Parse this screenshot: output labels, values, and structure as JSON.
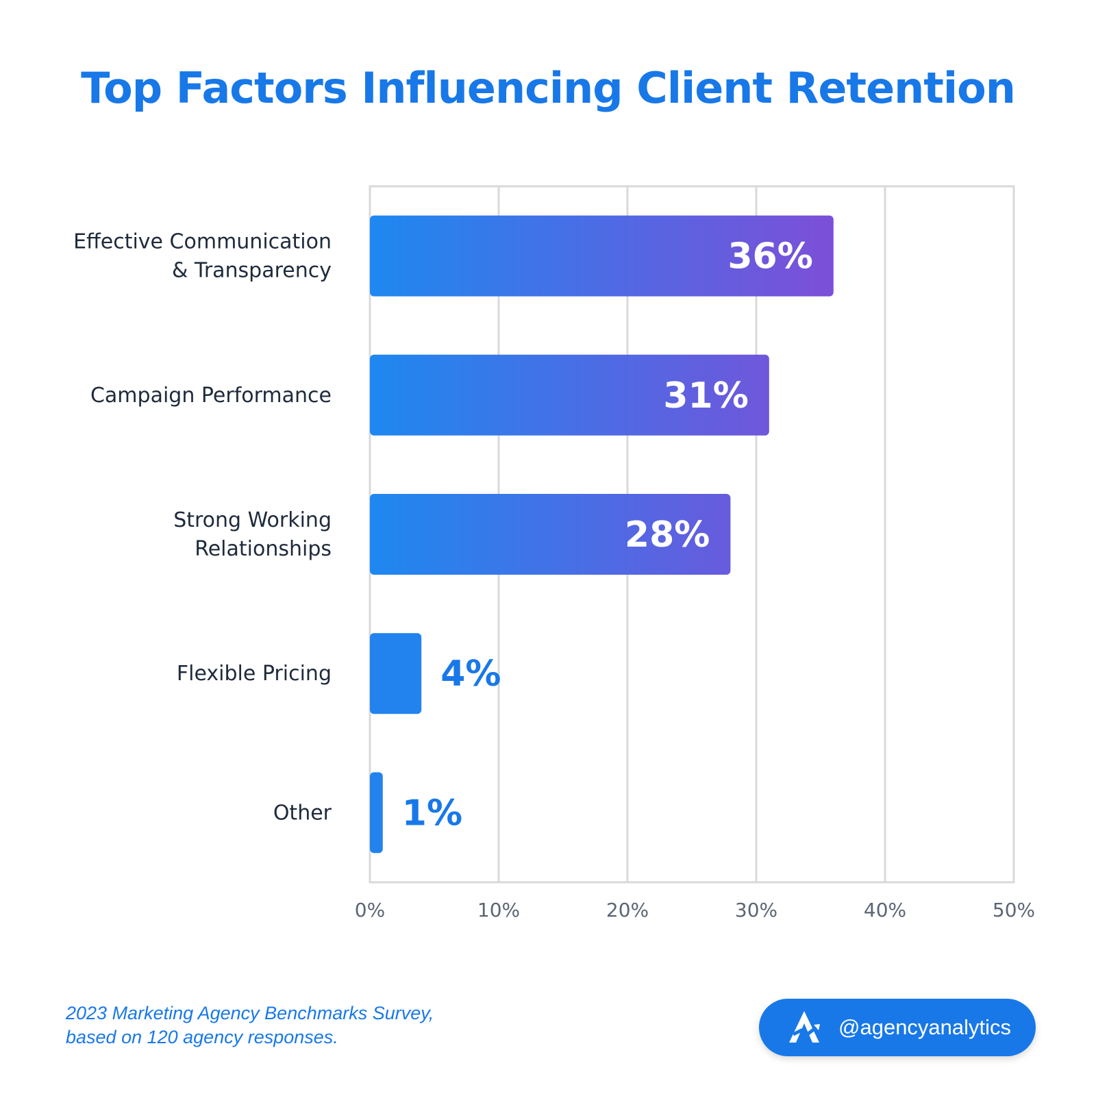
{
  "title": "Top Factors Influencing Client Retention",
  "chart_data": {
    "type": "bar",
    "orientation": "horizontal",
    "title": "Top Factors Influencing Client Retention",
    "categories": [
      [
        "Effective Communication",
        "& Transparency"
      ],
      [
        "Campaign Performance"
      ],
      [
        "Strong Working",
        "Relationships"
      ],
      [
        "Flexible Pricing"
      ],
      [
        "Other"
      ]
    ],
    "values": [
      36,
      31,
      28,
      4,
      1
    ],
    "value_labels": [
      "36%",
      "31%",
      "28%",
      "4%",
      "1%"
    ],
    "xlim": [
      0,
      50
    ],
    "x_ticks": [
      0,
      10,
      20,
      30,
      40,
      50
    ],
    "x_tick_labels": [
      "0%",
      "10%",
      "20%",
      "30%",
      "40%",
      "50%"
    ],
    "grid": true,
    "colors": {
      "gradient_start": "#1e88f0",
      "gradient_end": "#7c4fd8",
      "small_bar": "#2383ee",
      "grid": "#d9d9d9"
    }
  },
  "footer": {
    "source_line1": "2023 Marketing Agency Benchmarks Survey,",
    "source_line2": "based on 120 agency responses.",
    "handle": "@agencyanalytics",
    "logo_icon": "agencyanalytics-logo-icon"
  }
}
